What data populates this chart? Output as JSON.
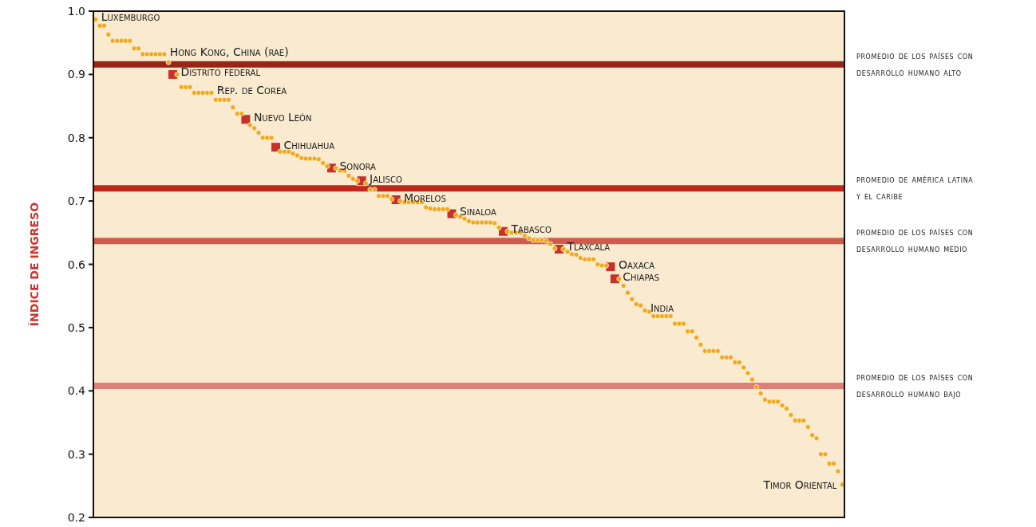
{
  "chart_data": {
    "type": "scatter",
    "ylabel": "ÍNDICE DE INGRESO",
    "ylim": [
      0.2,
      1.0
    ],
    "yticks": [
      0.2,
      0.3,
      0.4,
      0.5,
      0.6,
      0.7,
      0.8,
      0.9,
      {
        "value": 1.0,
        "label": "1.0"
      }
    ],
    "grid": false,
    "marker": "circle",
    "categories": [
      null,
      null,
      null,
      null,
      null,
      null,
      null,
      null,
      null,
      null,
      null,
      null,
      null,
      null,
      null,
      null,
      null,
      null,
      null,
      null,
      null,
      null,
      null,
      null,
      null,
      null,
      null,
      null,
      null,
      null,
      null,
      null,
      null,
      null,
      null,
      null,
      null,
      null,
      null,
      null,
      null,
      null,
      null,
      null,
      null,
      null,
      null,
      null,
      null,
      null,
      null,
      null,
      null,
      null,
      null,
      null,
      null,
      null,
      null,
      null,
      null,
      null,
      null,
      null,
      null,
      null,
      null,
      null,
      null,
      null,
      null,
      null,
      null,
      null,
      null,
      null,
      null,
      null,
      null,
      null,
      null,
      null,
      null,
      null,
      null,
      null,
      null,
      null,
      null,
      null,
      null,
      null,
      null,
      null,
      null,
      null,
      null,
      null,
      null,
      null,
      null,
      null,
      null,
      null,
      null,
      null,
      null,
      null,
      null,
      null,
      null,
      null,
      null,
      null,
      null,
      null,
      null,
      null,
      null,
      null,
      null,
      null,
      null,
      null,
      null,
      null,
      null,
      null,
      null,
      null,
      null,
      null,
      null,
      null,
      null,
      null,
      null,
      null,
      null,
      null,
      null,
      null,
      null,
      null,
      null,
      null,
      null,
      null,
      null,
      null,
      null,
      null,
      null,
      null,
      null,
      null,
      null,
      null,
      null,
      null,
      null,
      null,
      null,
      null,
      null,
      null,
      null,
      null,
      null,
      null,
      null,
      null,
      null,
      null,
      null
    ],
    "series": [
      {
        "color": "#f0a818",
        "values": [
          0.987,
          0.977,
          0.977,
          0.963,
          0.953,
          0.953,
          0.953,
          0.953,
          0.953,
          0.941,
          0.941,
          0.932,
          0.932,
          0.932,
          0.932,
          0.932,
          0.932,
          0.919,
          null,
          0.9,
          0.88,
          0.88,
          0.88,
          0.871,
          0.871,
          0.871,
          0.871,
          0.871,
          0.86,
          0.86,
          0.86,
          0.86,
          0.848,
          0.838,
          0.838,
          null,
          0.82,
          0.815,
          0.808,
          0.8,
          0.8,
          0.8,
          null,
          0.778,
          0.778,
          0.778,
          0.775,
          0.772,
          0.768,
          0.767,
          0.767,
          0.767,
          0.766,
          0.76,
          0.755,
          null,
          0.752,
          0.748,
          0.748,
          0.74,
          0.735,
          0.732,
          null,
          0.728,
          0.718,
          0.718,
          0.708,
          0.708,
          0.708,
          0.703,
          null,
          0.7,
          0.698,
          0.698,
          0.698,
          0.698,
          0.698,
          0.69,
          0.688,
          0.687,
          0.687,
          0.687,
          0.687,
          null,
          0.678,
          0.675,
          0.672,
          0.668,
          0.666,
          0.666,
          0.666,
          0.666,
          0.666,
          0.665,
          0.658,
          null,
          0.652,
          0.65,
          0.65,
          0.65,
          0.645,
          0.641,
          0.638,
          0.638,
          0.638,
          0.637,
          0.632,
          0.625,
          null,
          0.624,
          0.62,
          0.616,
          0.615,
          0.61,
          0.608,
          0.608,
          0.608,
          0.6,
          0.598,
          0.598,
          null,
          null,
          0.577,
          0.566,
          0.555,
          0.545,
          0.537,
          0.535,
          0.527,
          0.525,
          0.518,
          0.518,
          0.518,
          0.518,
          0.518,
          0.506,
          0.506,
          0.506,
          0.494,
          0.494,
          0.484,
          0.473,
          0.463,
          0.463,
          0.463,
          0.463,
          0.453,
          0.453,
          0.453,
          0.445,
          0.445,
          0.437,
          0.428,
          0.418,
          0.406,
          0.396,
          0.386,
          0.383,
          0.383,
          0.383,
          0.377,
          0.372,
          0.362,
          0.353,
          0.353,
          0.353,
          0.343,
          0.33,
          0.325,
          0.3,
          0.3,
          0.285,
          0.285,
          0.273,
          0.252
        ],
        "value_labels": [
          "Luxemburgo",
          null,
          null,
          null,
          null,
          null,
          null,
          null,
          null,
          null,
          null,
          null,
          null,
          null,
          null,
          null,
          "Hong Kong, China (rae)",
          null,
          null,
          null,
          null,
          null,
          null,
          null,
          null,
          null,
          null,
          "Rep. de Corea",
          null,
          null,
          null,
          null,
          null,
          null,
          null,
          null,
          null,
          null,
          null,
          null,
          null,
          null,
          null,
          null,
          null,
          null,
          null,
          null,
          null,
          null,
          null,
          null,
          null,
          null,
          null,
          null,
          null,
          null,
          null,
          null,
          null,
          null,
          null,
          null,
          null,
          null,
          null,
          null,
          null,
          null,
          null,
          null,
          null,
          null,
          null,
          null,
          null,
          null,
          null,
          null,
          null,
          null,
          null,
          null,
          null,
          null,
          null,
          null,
          null,
          null,
          null,
          null,
          null,
          null,
          null,
          null,
          null,
          null,
          null,
          null,
          null,
          null,
          null,
          null,
          null,
          null,
          null,
          null,
          null,
          null,
          null,
          null,
          null,
          null,
          null,
          null,
          null,
          null,
          null,
          null,
          null,
          null,
          null,
          null,
          null,
          null,
          null,
          null,
          "India",
          null,
          null,
          null,
          null,
          null,
          null,
          null,
          null,
          null,
          null,
          null,
          null,
          null,
          null,
          null,
          null,
          null,
          null,
          null,
          null,
          null,
          null,
          null,
          null,
          null,
          null,
          null,
          null,
          null,
          null,
          null,
          null,
          null,
          null,
          null,
          null,
          null,
          null,
          null,
          null,
          null,
          null,
          null,
          null,
          null,
          "Timor Oriental"
        ]
      },
      {
        "color": "#c8302a",
        "marker": "square",
        "values": [
          null,
          null,
          null,
          null,
          null,
          null,
          null,
          null,
          null,
          null,
          null,
          null,
          null,
          null,
          null,
          null,
          null,
          null,
          0.9,
          null,
          null,
          null,
          null,
          null,
          null,
          null,
          null,
          null,
          null,
          null,
          null,
          null,
          null,
          null,
          null,
          0.829,
          null,
          null,
          null,
          null,
          null,
          null,
          0.785,
          null,
          null,
          null,
          null,
          null,
          null,
          null,
          null,
          null,
          null,
          null,
          null,
          0.752,
          null,
          null,
          null,
          null,
          null,
          null,
          0.732,
          null,
          null,
          null,
          null,
          null,
          null,
          null,
          0.702,
          null,
          null,
          null,
          null,
          null,
          null,
          null,
          null,
          null,
          null,
          null,
          null,
          0.68,
          null,
          null,
          null,
          null,
          null,
          null,
          null,
          null,
          null,
          null,
          null,
          0.652,
          null,
          null,
          null,
          null,
          null,
          null,
          null,
          null,
          null,
          null,
          null,
          null,
          0.624,
          null,
          null,
          null,
          null,
          null,
          null,
          null,
          null,
          null,
          null,
          null,
          0.596,
          0.577,
          null,
          null,
          null,
          null,
          null,
          null,
          null,
          null,
          null,
          null,
          null,
          null,
          null,
          null,
          null,
          null,
          null,
          null,
          null,
          null,
          null,
          null,
          null,
          null,
          null,
          null,
          null,
          null,
          null,
          null,
          null,
          null,
          null,
          null,
          null,
          null,
          null,
          null,
          null,
          null,
          null,
          null,
          null,
          null,
          null,
          null,
          null,
          null,
          null,
          null,
          null,
          null,
          null
        ],
        "value_labels": [
          null,
          null,
          null,
          null,
          null,
          null,
          null,
          null,
          null,
          null,
          null,
          null,
          null,
          null,
          null,
          null,
          null,
          null,
          "Distrito federal",
          null,
          null,
          null,
          null,
          null,
          null,
          null,
          null,
          null,
          null,
          null,
          null,
          null,
          null,
          null,
          null,
          "Nuevo León",
          null,
          null,
          null,
          null,
          null,
          null,
          "Chihuahua",
          null,
          null,
          null,
          null,
          null,
          null,
          null,
          null,
          null,
          null,
          null,
          null,
          "Sonora",
          null,
          null,
          null,
          null,
          null,
          null,
          "Jalisco",
          null,
          null,
          null,
          null,
          null,
          null,
          null,
          "Morelos",
          null,
          null,
          null,
          null,
          null,
          null,
          null,
          null,
          null,
          null,
          null,
          null,
          "Sinaloa",
          null,
          null,
          null,
          null,
          null,
          null,
          null,
          null,
          null,
          null,
          null,
          "Tabasco",
          null,
          null,
          null,
          null,
          null,
          null,
          null,
          null,
          null,
          null,
          null,
          null,
          "Tlaxcala",
          null,
          null,
          null,
          null,
          null,
          null,
          null,
          null,
          null,
          null,
          null,
          "Oaxaca",
          "Chiapas",
          null,
          null,
          null,
          null,
          null,
          null,
          null,
          null,
          null,
          null,
          null,
          null,
          null,
          null,
          null,
          null,
          null,
          null,
          null,
          null,
          null,
          null,
          null,
          null,
          null,
          null,
          null,
          null,
          null,
          null,
          null,
          null,
          null,
          null,
          null,
          null,
          null,
          null,
          null,
          null,
          null,
          null,
          null,
          null,
          null,
          null,
          null,
          null,
          null,
          null,
          null,
          null,
          null
        ]
      }
    ],
    "ref_lines": [
      {
        "axis": "y",
        "value": 0.916,
        "label": "promedio de los países con desarrollo humano alto",
        "color": "#9b2418"
      },
      {
        "axis": "y",
        "value": 0.72,
        "label": "promedio de américa latina y el caribe",
        "color": "#c0281c"
      },
      {
        "axis": "y",
        "value": 0.637,
        "label": "promedio de los países con desarrollo humano medio",
        "color": "#d05a4e"
      },
      {
        "axis": "y",
        "value": 0.408,
        "label": "promedio de los países con desarrollo humano bajo",
        "color": "#de8078"
      }
    ]
  }
}
